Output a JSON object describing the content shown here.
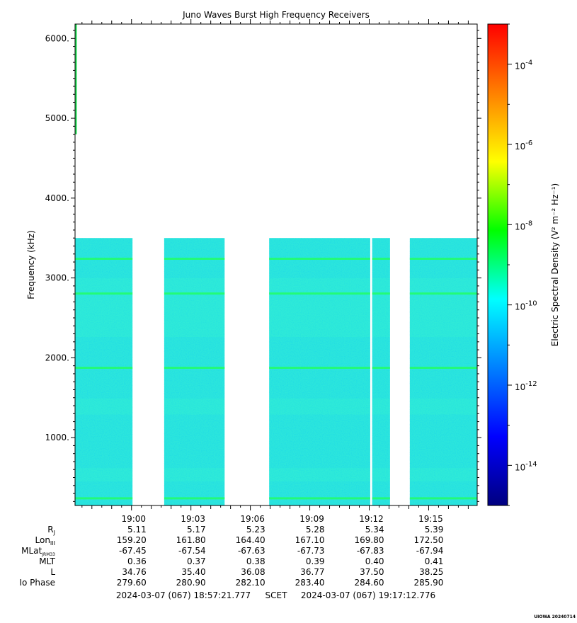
{
  "chart_data": {
    "type": "heatmap",
    "title": "Juno Waves Burst High Frequency Receivers",
    "ylabel": "Frequency (kHz)",
    "ylim": [
      150,
      6180
    ],
    "y_ticks": [
      "1000.",
      "2000.",
      "3000.",
      "4000.",
      "5000.",
      "6000."
    ],
    "y_tick_values": [
      1000,
      2000,
      3000,
      4000,
      5000,
      6000
    ],
    "x_range_min": [
      -2.85,
      17.45
    ],
    "x_ticks": [
      "19:00",
      "19:03",
      "19:06",
      "19:09",
      "19:12",
      "19:15"
    ],
    "x_tick_minutes": [
      0,
      3,
      6,
      9,
      12,
      15
    ],
    "data_top_khz": 3500,
    "data_segments_min": [
      [
        -2.85,
        0.05
      ],
      [
        1.65,
        4.7
      ],
      [
        6.95,
        12.05
      ],
      [
        12.15,
        13.05
      ],
      [
        14.05,
        17.45
      ]
    ],
    "emission_lines": [
      {
        "name": "",
        "khz": 3240
      },
      {
        "name": "",
        "khz": 2805
      },
      {
        "name": "",
        "khz": 1875
      },
      {
        "name": "",
        "khz": 240
      }
    ],
    "colorbar": {
      "label": "Electric Spectral Density (V² m⁻² Hz⁻¹)",
      "log_min": -15,
      "log_max": -3,
      "ticks": [
        {
          "base": "10",
          "exp": "-4",
          "log": -4
        },
        {
          "base": "10",
          "exp": "-6",
          "log": -6
        },
        {
          "base": "10",
          "exp": "-8",
          "log": -8
        },
        {
          "base": "10",
          "exp": "-10",
          "log": -10
        },
        {
          "base": "10",
          "exp": "-12",
          "log": -12
        },
        {
          "base": "10",
          "exp": "-14",
          "log": -14
        }
      ],
      "colors": [
        "#00007f",
        "#0000ff",
        "#0080ff",
        "#00ffff",
        "#00ff00",
        "#ffff00",
        "#ff8000",
        "#ff0000"
      ]
    },
    "ephemeris": [
      {
        "label": "R",
        "sub": "J",
        "values": [
          "5.11",
          "5.17",
          "5.23",
          "5.28",
          "5.34",
          "5.39"
        ]
      },
      {
        "label": "Lon",
        "sub": "III",
        "values": [
          "159.20",
          "161.80",
          "164.40",
          "167.10",
          "169.80",
          "172.50"
        ]
      },
      {
        "label": "MLat",
        "sub": "JRM33",
        "values": [
          "-67.45",
          "-67.54",
          "-67.63",
          "-67.73",
          "-67.83",
          "-67.94"
        ]
      },
      {
        "label": "MLT",
        "sub": "",
        "values": [
          "0.36",
          "0.37",
          "0.38",
          "0.39",
          "0.40",
          "0.41"
        ]
      },
      {
        "label": "L",
        "sub": "",
        "values": [
          "34.76",
          "35.40",
          "36.08",
          "36.77",
          "37.50",
          "38.25"
        ]
      },
      {
        "label": "Io Phase",
        "sub": "",
        "values": [
          "279.60",
          "280.90",
          "282.10",
          "283.40",
          "284.60",
          "285.90"
        ]
      }
    ],
    "time_range": {
      "start": "2024-03-07 (067) 18:57:21.777",
      "mid": "SCET",
      "end": "2024-03-07 (067) 19:17:12.776"
    }
  },
  "footer": "UIOWA 20240714"
}
